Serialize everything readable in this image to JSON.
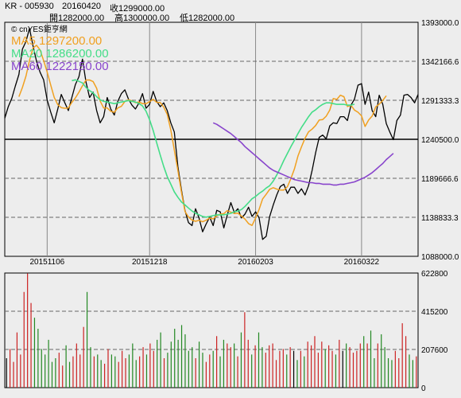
{
  "header": {
    "symbol": "KR - 005930",
    "date": "20160420",
    "close": "收1299000.00",
    "open": "開1282000.00",
    "high": "高1300000.00",
    "low": "低1282000.00"
  },
  "legend": {
    "source": "© cnYES鉅亨網",
    "ma5": "MA5 1297200.00",
    "ma20": "MA20 1286200.00",
    "ma60": "MA60 1222150.00"
  },
  "colors": {
    "background": "#ededed",
    "price": "#000000",
    "ma5": "#f0a020",
    "ma20": "#44dd88",
    "ma60": "#8844cc",
    "vol_up": "#cc2222",
    "vol_down": "#228822",
    "vol_flat": "#000000"
  },
  "chart_data": [
    {
      "type": "line",
      "panel": "price",
      "ylim": [
        1088000,
        1393000
      ],
      "y_ticks": [
        "1393000.0",
        "1342166.6",
        "1291333.3",
        "1240500.0",
        "1189666.6",
        "1138833.3",
        "1088000.0"
      ],
      "x_ticks": [
        "20151106",
        "20151218",
        "20160203",
        "20160322"
      ],
      "x_tick_index": [
        12,
        41,
        71,
        101
      ],
      "reference_line": 1240500,
      "series": [
        {
          "name": "Close",
          "color": "#000000",
          "start": 0,
          "values": [
            1268000,
            1283000,
            1294000,
            1310000,
            1325000,
            1358000,
            1368000,
            1385000,
            1362000,
            1342000,
            1328000,
            1318000,
            1292000,
            1276000,
            1262000,
            1280000,
            1299000,
            1288000,
            1278000,
            1295000,
            1312000,
            1322000,
            1345000,
            1315000,
            1295000,
            1302000,
            1278000,
            1262000,
            1270000,
            1295000,
            1280000,
            1272000,
            1290000,
            1300000,
            1305000,
            1293000,
            1285000,
            1280000,
            1288000,
            1300000,
            1281000,
            1286000,
            1303000,
            1290000,
            1283000,
            1288000,
            1278000,
            1262000,
            1250000,
            1205000,
            1175000,
            1148000,
            1132000,
            1128000,
            1150000,
            1138000,
            1120000,
            1130000,
            1139000,
            1128000,
            1148000,
            1146000,
            1125000,
            1142000,
            1158000,
            1145000,
            1150000,
            1138000,
            1143000,
            1152000,
            1140000,
            1146000,
            1138000,
            1110000,
            1114000,
            1140000,
            1155000,
            1168000,
            1179000,
            1182000,
            1170000,
            1178000,
            1178000,
            1170000,
            1176000,
            1168000,
            1180000,
            1200000,
            1223000,
            1243000,
            1246000,
            1241000,
            1258000,
            1262000,
            1261000,
            1270000,
            1270000,
            1265000,
            1285000,
            1293000,
            1311000,
            1313000,
            1286000,
            1302000,
            1278000,
            1270000,
            1298000,
            1286000,
            1261000,
            1250000,
            1240000,
            1265000,
            1272000,
            1298000,
            1299000,
            1295000,
            1288000,
            1299000
          ]
        },
        {
          "name": "MA5",
          "color": "#f0a020",
          "start": 4,
          "values": [
            1296000,
            1308000,
            1323000,
            1343200,
            1359600,
            1363000,
            1357000,
            1343000,
            1328400,
            1311200,
            1295200,
            1285600,
            1281800,
            1281000,
            1281400,
            1288600,
            1294400,
            1301800,
            1310400,
            1317800,
            1317800,
            1315800,
            1307000,
            1290400,
            1281400,
            1281400,
            1277000,
            1275800,
            1281400,
            1283400,
            1289800,
            1292200,
            1290600,
            1288200,
            1289200,
            1287000,
            1287000,
            1289600,
            1292600,
            1288600,
            1288400,
            1282400,
            1273000,
            1252600,
            1226600,
            1200000,
            1172000,
            1146600,
            1139200,
            1135200,
            1133600,
            1135000,
            1133000,
            1135000,
            1137800,
            1136800,
            1140800,
            1143000,
            1143600,
            1147600,
            1145600,
            1143800,
            1144200,
            1140400,
            1136600,
            1130600,
            1128200,
            1138000,
            1149200,
            1162800,
            1168800,
            1175400,
            1177400,
            1175600,
            1174400,
            1174400,
            1178800,
            1189400,
            1201800,
            1218800,
            1230600,
            1242000,
            1250200,
            1253800,
            1258400,
            1265600,
            1266200,
            1270600,
            1278600,
            1293600,
            1292600,
            1298000,
            1296000,
            1283200,
            1284800,
            1278600,
            1275800,
            1271000,
            1257200,
            1265600,
            1270800,
            1282800,
            1286200,
            1291200,
            1297200
          ]
        },
        {
          "name": "MA20",
          "color": "#44dd88",
          "start": 19,
          "values": [
            1317000,
            1318000,
            1316000,
            1314000,
            1308000,
            1304000,
            1301000,
            1296000,
            1292000,
            1290000,
            1289000,
            1288000,
            1287000,
            1288000,
            1289000,
            1290000,
            1291000,
            1290000,
            1289000,
            1287000,
            1284000,
            1277000,
            1266000,
            1252000,
            1236000,
            1220000,
            1205000,
            1192000,
            1182000,
            1172000,
            1165000,
            1159000,
            1155000,
            1151000,
            1147000,
            1144000,
            1142000,
            1140000,
            1139000,
            1140000,
            1141000,
            1142000,
            1142000,
            1142000,
            1143000,
            1144000,
            1146000,
            1147000,
            1149000,
            1153000,
            1158000,
            1163000,
            1166000,
            1170000,
            1173000,
            1177000,
            1180000,
            1186000,
            1194000,
            1203000,
            1213000,
            1222000,
            1231000,
            1239000,
            1248000,
            1256000,
            1263000,
            1270000,
            1276000,
            1279000,
            1283000,
            1286000,
            1288000,
            1288000,
            1287000,
            1286000,
            1286000,
            1286000,
            1285000,
            1285000,
            1286200
          ]
        },
        {
          "name": "MA60",
          "color": "#8844cc",
          "start": 59,
          "values": [
            1262000,
            1260000,
            1257000,
            1254000,
            1251000,
            1248000,
            1244000,
            1240000,
            1236000,
            1231000,
            1227000,
            1223000,
            1219000,
            1215000,
            1211000,
            1207000,
            1203000,
            1200000,
            1198000,
            1196000,
            1194000,
            1192000,
            1190000,
            1188000,
            1187000,
            1186000,
            1185000,
            1184000,
            1184000,
            1183000,
            1183000,
            1182000,
            1182000,
            1182000,
            1181000,
            1181000,
            1182000,
            1182000,
            1183000,
            1184000,
            1185000,
            1187000,
            1189000,
            1191000,
            1194000,
            1197000,
            1201000,
            1205000,
            1209000,
            1214000,
            1218000,
            1222150
          ]
        }
      ]
    },
    {
      "type": "bar",
      "panel": "volume",
      "ylim": [
        0,
        622800
      ],
      "y_ticks": [
        "622800",
        "415200",
        "207600",
        "0"
      ],
      "values": [
        160000,
        210000,
        140000,
        300000,
        180000,
        520000,
        620000,
        460000,
        380000,
        320000,
        210000,
        180000,
        260000,
        140000,
        160000,
        190000,
        120000,
        230000,
        140000,
        170000,
        240000,
        180000,
        330000,
        520000,
        220000,
        170000,
        180000,
        150000,
        130000,
        210000,
        180000,
        170000,
        140000,
        200000,
        160000,
        180000,
        240000,
        150000,
        170000,
        220000,
        180000,
        240000,
        200000,
        260000,
        300000,
        160000,
        190000,
        250000,
        320000,
        260000,
        340000,
        290000,
        200000,
        220000,
        160000,
        250000,
        190000,
        140000,
        180000,
        200000,
        280000,
        170000,
        260000,
        240000,
        220000,
        240000,
        170000,
        300000,
        410000,
        260000,
        180000,
        230000,
        300000,
        220000,
        190000,
        230000,
        240000,
        150000,
        200000,
        210000,
        180000,
        220000,
        200000,
        150000,
        200000,
        170000,
        250000,
        230000,
        280000,
        190000,
        250000,
        210000,
        230000,
        200000,
        180000,
        260000,
        200000,
        240000,
        220000,
        190000,
        200000,
        240000,
        280000,
        240000,
        310000,
        160000,
        240000,
        290000,
        220000,
        160000,
        150000,
        200000,
        160000,
        350000,
        280000,
        180000,
        150000,
        170000
      ]
    }
  ]
}
